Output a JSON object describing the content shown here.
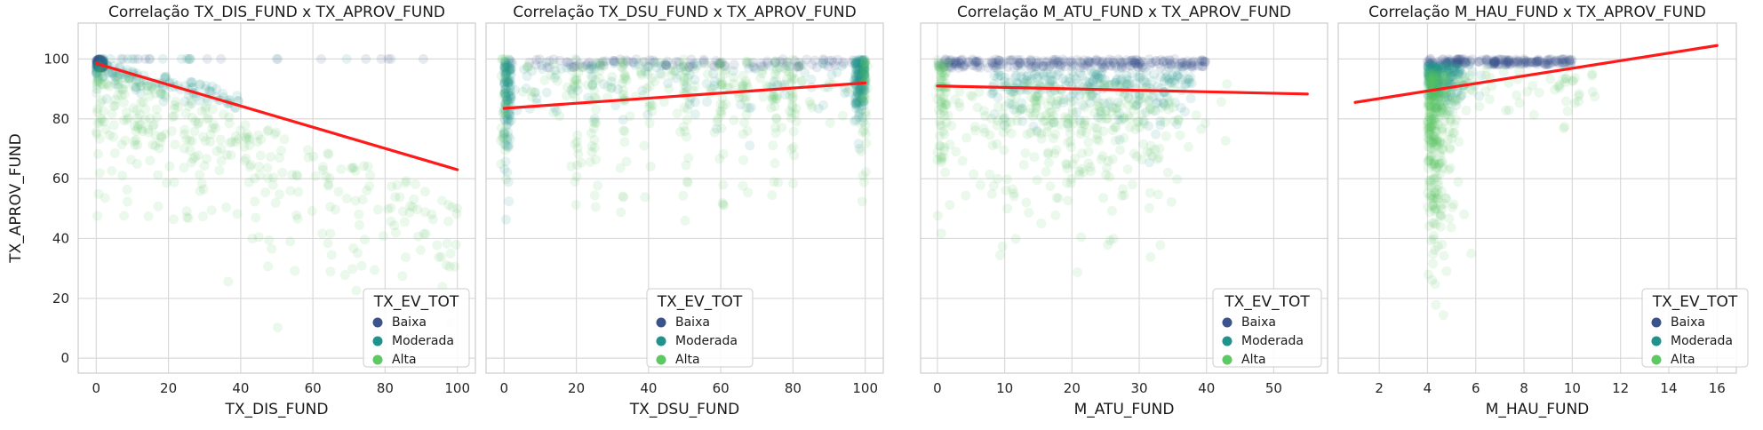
{
  "figure": {
    "ylabel": "TX_APROV_FUND"
  },
  "legend": {
    "title": "TX_EV_TOT",
    "entries": [
      {
        "label": "Baixa",
        "color": "#3b528b"
      },
      {
        "label": "Moderada",
        "color": "#21918c"
      },
      {
        "label": "Alta",
        "color": "#5ec962"
      }
    ]
  },
  "colors": {
    "regression": "#ff1a1a",
    "grid": "#d9d9d9",
    "frame": "#cccccc",
    "background": "#ffffff"
  },
  "chart_data": [
    {
      "type": "scatter",
      "title": "Correlação TX_DIS_FUND x TX_APROV_FUND",
      "xlabel": "TX_DIS_FUND",
      "ylabel": "TX_APROV_FUND",
      "xlim": [
        -5,
        105
      ],
      "ylim": [
        -5,
        112
      ],
      "xticks": [
        0,
        20,
        40,
        60,
        80,
        100
      ],
      "yticks": [
        0,
        20,
        40,
        60,
        80,
        100
      ],
      "grid": true,
      "legend_position": "lower-right",
      "regression": {
        "x": [
          0,
          100
        ],
        "y": [
          98.5,
          63
        ]
      },
      "scatter_model": "decreasing-cloud"
    },
    {
      "type": "scatter",
      "title": "Correlação TX_DSU_FUND x TX_APROV_FUND",
      "xlabel": "TX_DSU_FUND",
      "ylabel": "TX_APROV_FUND",
      "xlim": [
        -5,
        105
      ],
      "ylim": [
        -5,
        112
      ],
      "xticks": [
        0,
        20,
        40,
        60,
        80,
        100
      ],
      "yticks": [
        0,
        20,
        40,
        60,
        80,
        100
      ],
      "grid": true,
      "legend_position": "lower-center",
      "regression": {
        "x": [
          0,
          100
        ],
        "y": [
          83.5,
          92
        ]
      },
      "scatter_model": "vertical-stripes"
    },
    {
      "type": "scatter",
      "title": "Correlação M_ATU_FUND x TX_APROV_FUND",
      "xlabel": "M_ATU_FUND",
      "ylabel": "TX_APROV_FUND",
      "xlim": [
        -2.5,
        58
      ],
      "ylim": [
        -5,
        112
      ],
      "xticks": [
        0,
        10,
        20,
        30,
        40,
        50
      ],
      "yticks": [
        0,
        20,
        40,
        60,
        80,
        100
      ],
      "grid": true,
      "legend_position": "lower-right",
      "regression": {
        "x": [
          0,
          55
        ],
        "y": [
          91,
          88.3
        ]
      },
      "scatter_model": "hump-cloud"
    },
    {
      "type": "scatter",
      "title": "Correlação M_HAU_FUND x TX_APROV_FUND",
      "xlabel": "M_HAU_FUND",
      "ylabel": "TX_APROV_FUND",
      "xlim": [
        0.3,
        16.8
      ],
      "ylim": [
        -5,
        112
      ],
      "xticks": [
        2,
        4,
        6,
        8,
        10,
        12,
        14,
        16
      ],
      "yticks": [
        0,
        20,
        40,
        60,
        80,
        100
      ],
      "grid": true,
      "legend_position": "lower-right",
      "regression": {
        "x": [
          1,
          16
        ],
        "y": [
          85.5,
          104.5
        ]
      },
      "scatter_model": "narrow-column"
    }
  ]
}
